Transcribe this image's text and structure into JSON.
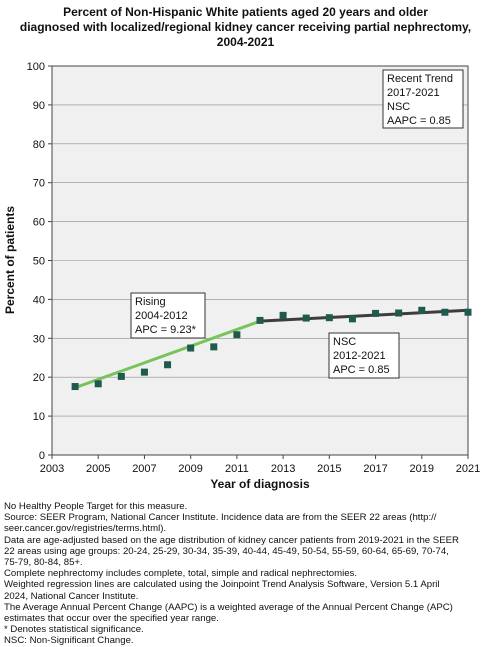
{
  "chart_data": {
    "type": "line",
    "title_lines": [
      "Percent of Non-Hispanic White patients aged 20 years and older",
      "diagnosed with localized/regional kidney cancer receiving partial nephrectomy,",
      "2004-2021"
    ],
    "xlabel": "Year of diagnosis",
    "ylabel": "Percent of patients",
    "xlim": [
      2003,
      2021
    ],
    "ylim": [
      0,
      100
    ],
    "x_ticks": [
      2003,
      2005,
      2007,
      2009,
      2011,
      2013,
      2015,
      2017,
      2019,
      2021
    ],
    "y_ticks": [
      0,
      10,
      20,
      30,
      40,
      50,
      60,
      70,
      80,
      90,
      100
    ],
    "grid": true,
    "observed": {
      "x": [
        2004,
        2005,
        2006,
        2007,
        2008,
        2009,
        2010,
        2011,
        2012,
        2013,
        2014,
        2015,
        2016,
        2017,
        2018,
        2019,
        2020,
        2021
      ],
      "y": [
        17.6,
        18.3,
        20.2,
        21.3,
        23.2,
        27.5,
        27.8,
        30.9,
        34.6,
        35.9,
        35.2,
        35.3,
        35.0,
        36.4,
        36.5,
        37.2,
        36.7,
        36.7
      ],
      "color": "#1e5a4e"
    },
    "trend_segments": [
      {
        "x": [
          2004,
          2012
        ],
        "y": [
          17.3,
          34.4
        ],
        "color": "#78c45a"
      },
      {
        "x": [
          2012,
          2021
        ],
        "y": [
          34.4,
          37.2
        ],
        "color": "#3d3d3d"
      }
    ],
    "annotations": [
      {
        "lines": [
          "Recent Trend",
          "2017-2021",
          "NSC",
          "AAPC =  0.85"
        ]
      },
      {
        "lines": [
          "Rising",
          "2004-2012",
          "APC =  9.23*"
        ]
      },
      {
        "lines": [
          "NSC",
          "2012-2021",
          "APC =  0.85"
        ]
      }
    ]
  },
  "footnotes": [
    "No Healthy People Target for this measure.",
    "Source: SEER Program, National Cancer Institute. Incidence data are from the SEER 22 areas (http://",
    "seer.cancer.gov/registries/terms.html).",
    "Data are age-adjusted based on the age distribution of kidney cancer patients from 2019-2021 in the SEER",
    "22 areas using age groups: 20-24, 25-29, 30-34, 35-39, 40-44, 45-49, 50-54, 55-59, 60-64, 65-69, 70-74,",
    "75-79, 80-84, 85+.",
    "Complete nephrectomy includes complete, total, simple and radical nephrectomies.",
    "Weighted regression lines are calculated using the Joinpoint Trend Analysis Software, Version 5.1 April",
    "2024, National Cancer Institute.",
    "The Average Annual Percent Change (AAPC) is a weighted average of the Annual Percent Change (APC)",
    "estimates that occur over the specified year range.",
    "* Denotes statistical significance.",
    "NSC: Non-Significant Change."
  ]
}
